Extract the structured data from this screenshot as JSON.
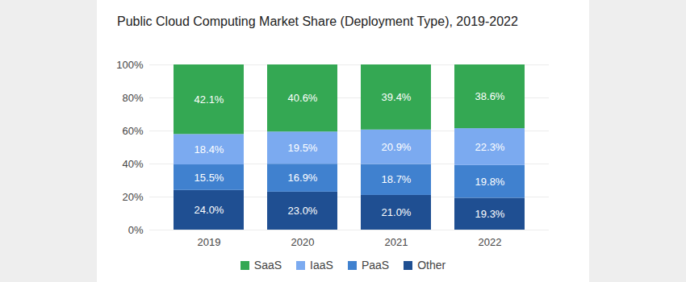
{
  "chart_data": {
    "type": "bar",
    "title": "Public Cloud Computing Market Share (Deployment Type), 2019-2022",
    "categories": [
      "2019",
      "2020",
      "2021",
      "2022"
    ],
    "series": [
      {
        "name": "SaaS",
        "color": "#34a853",
        "values": [
          42.1,
          40.6,
          39.4,
          38.6
        ],
        "value_labels": [
          "42.1%",
          "40.6%",
          "39.4%",
          "38.6%"
        ]
      },
      {
        "name": "IaaS",
        "color": "#7baaf0",
        "values": [
          18.4,
          19.5,
          20.9,
          22.3
        ],
        "value_labels": [
          "18.4%",
          "19.5%",
          "20.9%",
          "22.3%"
        ]
      },
      {
        "name": "PaaS",
        "color": "#4081cf",
        "values": [
          15.5,
          16.9,
          18.7,
          19.8
        ],
        "value_labels": [
          "15.5%",
          "16.9%",
          "18.7%",
          "19.8%"
        ]
      },
      {
        "name": "Other",
        "color": "#1f4f92",
        "values": [
          24.0,
          23.0,
          21.0,
          19.3
        ],
        "value_labels": [
          "24.0%",
          "23.0%",
          "21.0%",
          "19.3%"
        ]
      }
    ],
    "ylim": [
      0,
      100
    ],
    "yticks": [
      {
        "value": 0,
        "label": "0%"
      },
      {
        "value": 20,
        "label": "20%"
      },
      {
        "value": 40,
        "label": "40%"
      },
      {
        "value": 60,
        "label": "60%"
      },
      {
        "value": 80,
        "label": "80%"
      },
      {
        "value": 100,
        "label": "100%"
      }
    ],
    "grid": true,
    "stacked": true,
    "data_labels": true,
    "legend": "bottom"
  }
}
